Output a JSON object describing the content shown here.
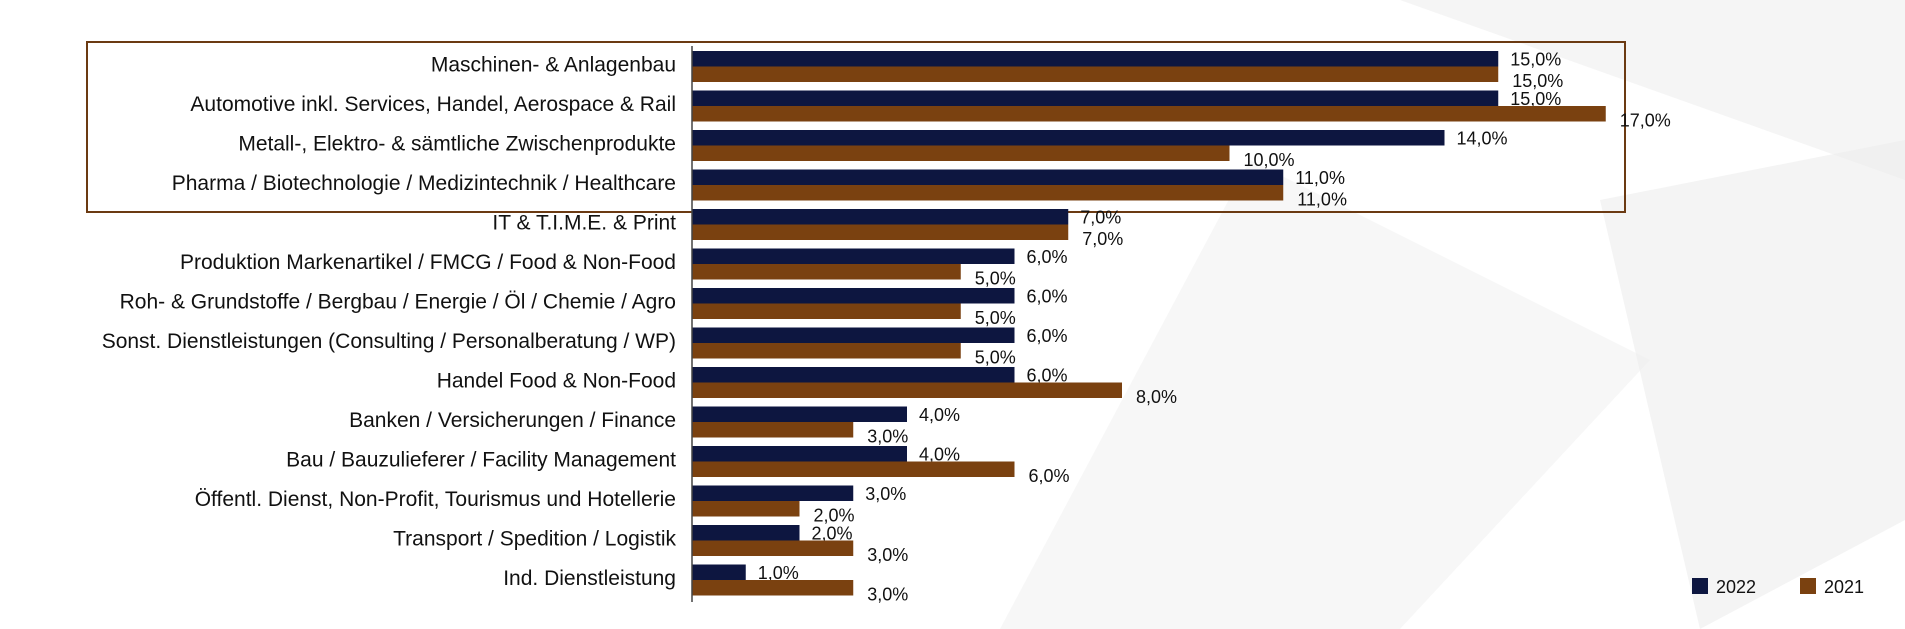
{
  "colors": {
    "series_2022": "#0d1640",
    "series_2021": "#7a4110",
    "highlight_box": "#6b3a12",
    "axis": "#444444"
  },
  "chart_data": {
    "type": "bar",
    "orientation": "horizontal",
    "title": "",
    "xlabel": "",
    "ylabel": "",
    "xlim": [
      0,
      20
    ],
    "grid": false,
    "legend_position": "bottom-right",
    "categories": [
      "Maschinen- & Anlagenbau",
      "Automotive inkl. Services, Handel, Aerospace & Rail",
      "Metall-, Elektro- & sämtliche Zwischenprodukte",
      "Pharma / Biotechnologie / Medizintechnik / Healthcare",
      "IT & T.I.M.E. & Print",
      "Produktion Markenartikel / FMCG / Food & Non-Food",
      "Roh- & Grundstoffe / Bergbau / Energie / Öl / Chemie / Agro",
      "Sonst. Dienstleistungen (Consulting / Personalberatung / WP)",
      "Handel Food & Non-Food",
      "Banken / Versicherungen / Finance",
      "Bau / Bauzulieferer / Facility Management",
      "Öffentl. Dienst, Non-Profit, Tourismus und Hotellerie",
      "Transport / Spedition / Logistik",
      "Ind. Dienstleistung"
    ],
    "series": [
      {
        "name": "2022",
        "values": [
          15,
          15,
          14,
          11,
          7,
          6,
          6,
          6,
          6,
          4,
          4,
          3,
          2,
          1
        ],
        "labels": [
          "15,0%",
          "15,0%",
          "14,0%",
          "11,0%",
          "7,0%",
          "6,0%",
          "6,0%",
          "6,0%",
          "6,0%",
          "4,0%",
          "4,0%",
          "3,0%",
          "2,0%",
          "1,0%"
        ]
      },
      {
        "name": "2021",
        "values": [
          15,
          17,
          10,
          11,
          7,
          5,
          5,
          5,
          8,
          3,
          6,
          2,
          3,
          3
        ],
        "labels": [
          "15,0%",
          "17,0%",
          "10,0%",
          "11,0%",
          "7,0%",
          "5,0%",
          "5,0%",
          "5,0%",
          "8,0%",
          "3,0%",
          "6,0%",
          "2,0%",
          "3,0%",
          "3,0%"
        ]
      }
    ],
    "highlighted_categories": 4
  }
}
